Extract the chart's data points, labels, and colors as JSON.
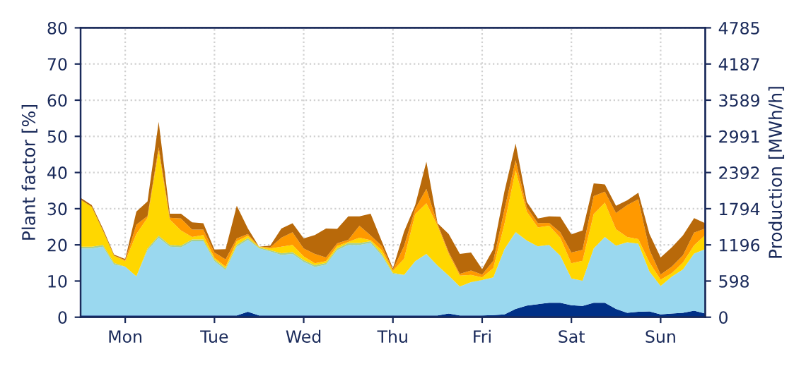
{
  "chart_data": {
    "type": "area",
    "stacked": true,
    "ylabel": "Plant factor [%]",
    "y2label": "Production [MWh/h]",
    "categories": [
      null,
      null,
      null,
      null,
      "Mon",
      null,
      null,
      null,
      null,
      null,
      null,
      null,
      "Tue",
      null,
      null,
      null,
      null,
      null,
      null,
      null,
      "Wed",
      null,
      null,
      null,
      null,
      null,
      null,
      null,
      "Thu",
      null,
      null,
      null,
      null,
      null,
      null,
      null,
      "Fri",
      null,
      null,
      null,
      null,
      null,
      null,
      null,
      "Sat",
      null,
      null,
      null,
      null,
      null,
      null,
      null,
      "Sun",
      null,
      null,
      null,
      null
    ],
    "series": [
      {
        "color": "#003087",
        "values": [
          0.5,
          0.5,
          0.5,
          0.5,
          0.5,
          0.5,
          0.5,
          0.5,
          0.5,
          0.5,
          0.5,
          0.5,
          0.5,
          0.5,
          0.5,
          1.5,
          0.5,
          0.5,
          0.5,
          0.5,
          0.5,
          0.5,
          0.5,
          0.5,
          0.5,
          0.5,
          0.5,
          0.5,
          0.5,
          0.5,
          0.5,
          0.5,
          0.5,
          1,
          0.5,
          0.5,
          0.5,
          0.6,
          0.8,
          2.3,
          3.2,
          3.6,
          4,
          4,
          3.3,
          3.1,
          4,
          4,
          2.3,
          1.2,
          1.5,
          1.6,
          0.8,
          1,
          1.2,
          1.8,
          1
        ]
      },
      {
        "color": "#9ad8ef",
        "values": [
          18.5,
          18.5,
          19,
          14,
          13.5,
          10.8,
          18,
          21.5,
          19,
          18.8,
          20.5,
          20.5,
          15,
          12.5,
          19,
          19.9,
          18.5,
          17.7,
          16.7,
          17,
          14.8,
          13.4,
          14,
          18,
          19.5,
          19.5,
          20,
          16.5,
          11.5,
          11.2,
          15,
          17,
          13.8,
          10.5,
          8,
          9.2,
          9.8,
          10.4,
          18,
          21.1,
          18,
          16,
          16,
          13,
          7.4,
          7,
          15,
          18.2,
          17.5,
          19.5,
          18.8,
          11,
          7.8,
          10.2,
          12,
          15.8,
          17.8
        ]
      },
      {
        "color": "#a8d08d",
        "values": [
          0.5,
          0.5,
          0.5,
          0.5,
          0,
          0,
          0.5,
          0.5,
          0.5,
          0.5,
          0.5,
          0.5,
          0.5,
          0.5,
          0.5,
          0.5,
          0.3,
          0.3,
          0.5,
          0.5,
          0.5,
          0.5,
          0.5,
          0.5,
          0.5,
          0.5,
          0.5,
          0.5,
          0.3,
          0,
          0,
          0,
          0,
          0,
          0,
          0,
          0,
          0,
          0,
          0.2,
          0,
          0,
          0,
          0,
          0,
          0,
          0,
          0,
          0,
          0,
          0,
          0,
          0,
          0,
          0,
          0,
          0
        ]
      },
      {
        "color": "#ffd700",
        "values": [
          13,
          11,
          4,
          2,
          1.5,
          11.7,
          8.5,
          23.5,
          7,
          4.2,
          0.7,
          1.2,
          0.4,
          0.5,
          1,
          0.6,
          0.2,
          0.5,
          1.8,
          2,
          1,
          0.5,
          0.5,
          0.7,
          0.3,
          1.5,
          0.3,
          1,
          0.5,
          4.5,
          13,
          14,
          11,
          6,
          3,
          2,
          0.7,
          2.6,
          7,
          17,
          8,
          5.2,
          5.3,
          5,
          4.2,
          5.5,
          9.5,
          9.5,
          4.5,
          1.5,
          1.3,
          2.5,
          1.8,
          1,
          1.9,
          2.3,
          3.9
        ]
      },
      {
        "color": "#ff9900",
        "values": [
          0,
          0,
          0,
          0,
          0.3,
          2.6,
          0.5,
          1,
          0.5,
          3.3,
          2,
          1.5,
          1.5,
          2,
          0.8,
          0.5,
          0,
          0.3,
          2.5,
          3.5,
          2.2,
          2.6,
          1,
          0.7,
          0.6,
          3.3,
          1.3,
          1.2,
          0.3,
          3.5,
          1.5,
          4,
          0.5,
          0.5,
          0.5,
          1.2,
          0.8,
          2,
          4,
          2.8,
          1.2,
          1.2,
          0.8,
          1.5,
          3,
          3,
          5,
          3,
          4.5,
          8.8,
          11,
          3.5,
          1.4,
          1.8,
          2,
          3.5,
          1.8
        ]
      },
      {
        "color": "#b8690a",
        "values": [
          0.5,
          0.5,
          0.5,
          0.3,
          0.3,
          3.6,
          4,
          7,
          1.1,
          1.3,
          2,
          1.8,
          0.8,
          2.8,
          9,
          1.5,
          0,
          0.5,
          2.5,
          2.5,
          2.8,
          5.2,
          8,
          4,
          6.5,
          2.6,
          6,
          1.3,
          0.4,
          4,
          1,
          7.5,
          0.2,
          5,
          5.5,
          5,
          1.5,
          3.2,
          5,
          4.6,
          1.5,
          1.3,
          1.8,
          4.3,
          5,
          5.4,
          3.5,
          2,
          2,
          1.3,
          1.8,
          4.4,
          4.7,
          5.3,
          5.5,
          4,
          1.5
        ]
      }
    ],
    "ylim": [
      0,
      80
    ],
    "yticks": [
      0,
      10,
      20,
      30,
      40,
      50,
      60,
      70,
      80
    ],
    "y2lim": [
      0,
      4785
    ],
    "y2ticks": [
      0,
      598,
      1196,
      1794,
      2392,
      2991,
      3589,
      4187,
      4785
    ],
    "grid": true
  }
}
